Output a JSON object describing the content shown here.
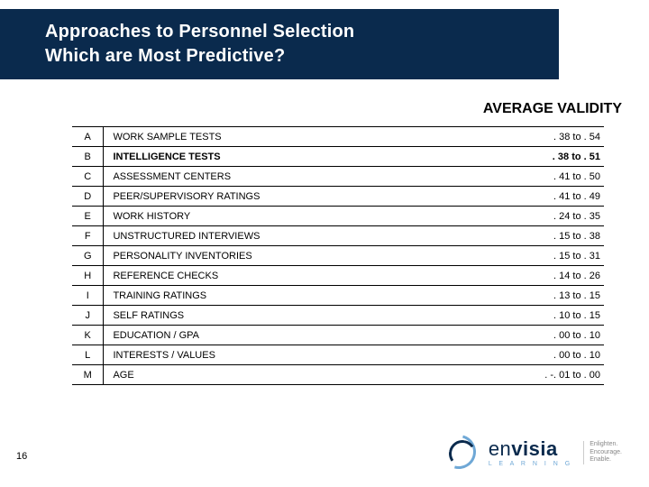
{
  "title": {
    "line1": "Approaches to Personnel Selection",
    "line2": "Which are Most Predictive?"
  },
  "avg_validity_label": "AVERAGE VALIDITY",
  "page_number": "16",
  "table": {
    "columns": [
      "letter",
      "description",
      "validity"
    ],
    "rows": [
      {
        "letter": "A",
        "description": "WORK SAMPLE TESTS",
        "validity": ". 38 to . 54",
        "bold_desc": false,
        "bold_val": false
      },
      {
        "letter": "B",
        "description": "INTELLIGENCE TESTS",
        "validity": ". 38 to . 51",
        "bold_desc": true,
        "bold_val": true
      },
      {
        "letter": "C",
        "description": "ASSESSMENT CENTERS",
        "validity": ". 41 to . 50",
        "bold_desc": false,
        "bold_val": false
      },
      {
        "letter": "D",
        "description": "PEER/SUPERVISORY RATINGS",
        "validity": ". 41 to . 49",
        "bold_desc": false,
        "bold_val": false
      },
      {
        "letter": "E",
        "description": "WORK HISTORY",
        "validity": ". 24 to . 35",
        "bold_desc": false,
        "bold_val": false
      },
      {
        "letter": "F",
        "description": "UNSTRUCTURED INTERVIEWS",
        "validity": ". 15 to . 38",
        "bold_desc": false,
        "bold_val": false
      },
      {
        "letter": "G",
        "description": "PERSONALITY INVENTORIES",
        "validity": ". 15 to . 31",
        "bold_desc": false,
        "bold_val": false
      },
      {
        "letter": "H",
        "description": "REFERENCE CHECKS",
        "validity": ". 14 to . 26",
        "bold_desc": false,
        "bold_val": false
      },
      {
        "letter": "I",
        "description": "TRAINING RATINGS",
        "validity": ". 13 to . 15",
        "bold_desc": false,
        "bold_val": false
      },
      {
        "letter": "J",
        "description": "SELF RATINGS",
        "validity": ". 10 to . 15",
        "bold_desc": false,
        "bold_val": false
      },
      {
        "letter": "K",
        "description": "EDUCATION / GPA",
        "validity": ". 00 to . 10",
        "bold_desc": false,
        "bold_val": false
      },
      {
        "letter": "L",
        "description": "INTERESTS / VALUES",
        "validity": ". 00 to . 10",
        "bold_desc": false,
        "bold_val": false
      },
      {
        "letter": "M",
        "description": "AGE",
        "validity": ". -. 01 to . 00",
        "bold_desc": false,
        "bold_val": false
      }
    ]
  },
  "logo": {
    "brand_light": "en",
    "brand_bold": "visia",
    "sub": "L E A R N I N G",
    "tag1": "Enlighten.",
    "tag2": "Encourage.",
    "tag3": "Enable."
  },
  "colors": {
    "bar_bg": "#0a2a4d",
    "accent": "#6fa8d6",
    "text": "#000000",
    "bg": "#ffffff"
  }
}
